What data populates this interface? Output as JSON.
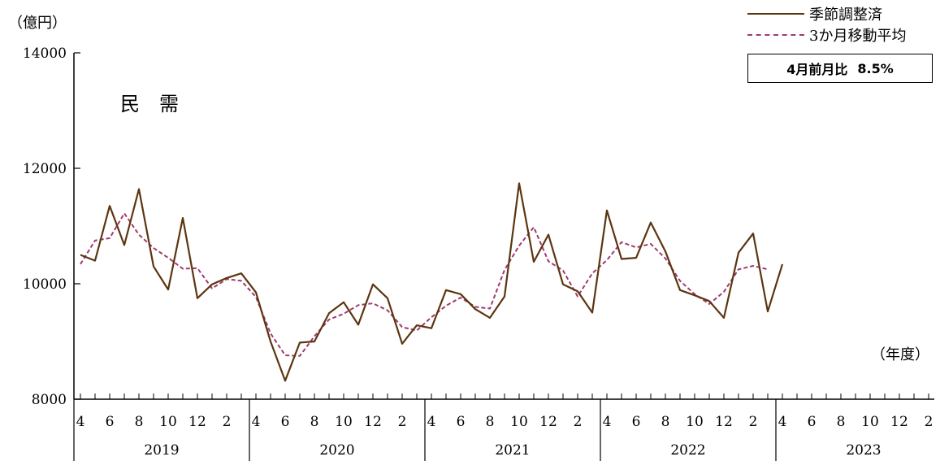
{
  "colors": {
    "actual": "#5c3510",
    "moving_avg": "#a03a6e"
  },
  "labels": {
    "unit": "（億円）",
    "chart_label": "民　需",
    "fy_unit": "（年度）",
    "badge_label": "4月前月比",
    "badge_value": "8.5%"
  },
  "chart_data": {
    "type": "line",
    "ylim": [
      8000,
      14000
    ],
    "y_ticks": [
      8000,
      10000,
      12000,
      14000
    ],
    "x_month_ticks": [
      "4",
      "6",
      "8",
      "10",
      "12",
      "2",
      "4",
      "6",
      "8",
      "10",
      "12",
      "2",
      "4",
      "6",
      "8",
      "10",
      "12",
      "2",
      "4",
      "6",
      "8",
      "10",
      "12",
      "2",
      "4",
      "6",
      "8",
      "10",
      "12",
      "2"
    ],
    "fiscal_years": [
      "2019",
      "2020",
      "2021",
      "2022",
      "2023"
    ],
    "series": [
      {
        "name": "季節調整済",
        "style": "solid",
        "values": [
          10500,
          10400,
          11350,
          10670,
          11640,
          10300,
          9900,
          11140,
          9750,
          9990,
          10100,
          10180,
          9850,
          9000,
          8320,
          8980,
          9000,
          9490,
          9680,
          9290,
          9990,
          9750,
          8960,
          9280,
          9230,
          9890,
          9820,
          9560,
          9410,
          9780,
          11740,
          10380,
          10850,
          9990,
          9870,
          9500,
          11270,
          10430,
          10450,
          11060,
          10560,
          9890,
          9800,
          9700,
          9410,
          10540,
          10870,
          9520,
          10340
        ]
      },
      {
        "name": "3か月移動平均",
        "style": "dashed",
        "values": [
          10340,
          10750,
          10790,
          11220,
          10850,
          10620,
          10450,
          10260,
          10270,
          9920,
          10080,
          10050,
          9770,
          9140,
          8760,
          8750,
          9090,
          9380,
          9480,
          9630,
          9660,
          9540,
          9250,
          9190,
          9420,
          9620,
          9760,
          9600,
          9570,
          10240,
          10660,
          10980,
          10390,
          10230,
          9780,
          10180,
          10410,
          10720,
          10630,
          10690,
          10440,
          10050,
          9820,
          9650,
          9860,
          10250,
          10310,
          10250
        ]
      }
    ]
  }
}
